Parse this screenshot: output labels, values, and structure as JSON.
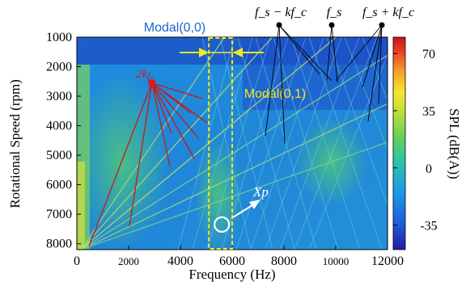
{
  "chart_data": {
    "type": "heatmap",
    "xlabel": "Frequency (Hz)",
    "ylabel": "Rotational Speed (rpm)",
    "xlim": [
      0,
      12000
    ],
    "ylim": [
      1000,
      8200
    ],
    "x_ticks": [
      "0",
      "2000",
      "4000",
      "6000",
      "8000",
      "10000",
      "12000"
    ],
    "y_ticks": [
      "1000",
      "2000",
      "3000",
      "4000",
      "5000",
      "6000",
      "7000",
      "8000"
    ],
    "colorbar": {
      "label": "SPL (dB(A))",
      "ticks": [
        "70",
        "35",
        "0",
        "-35"
      ],
      "range": [
        -50,
        80
      ],
      "colors": [
        "#2a1aa8",
        "#1e5ad8",
        "#1e96e6",
        "#28c0b4",
        "#5cd25a",
        "#b8de3a",
        "#f4e630",
        "#f6a028",
        "#ea4222",
        "#c81418"
      ]
    },
    "annotations": {
      "modal00": "Modal(0,0)",
      "modal01": "Modal(0,1)",
      "xp": "Xp",
      "two_kfc_prefix": "2k",
      "two_kfc_sub": "f",
      "two_kfc_subsub": "c",
      "fs_minus": "f_s − kf_c",
      "fs": "f_s",
      "fs_plus": "f_s + kf_c"
    },
    "modal_band_hz": [
      5100,
      6000
    ],
    "xp_point": {
      "frequency_hz": 5600,
      "rpm": 7350
    },
    "peak_2kfc": {
      "frequency_hz": 2900,
      "rpm": 2550
    }
  }
}
